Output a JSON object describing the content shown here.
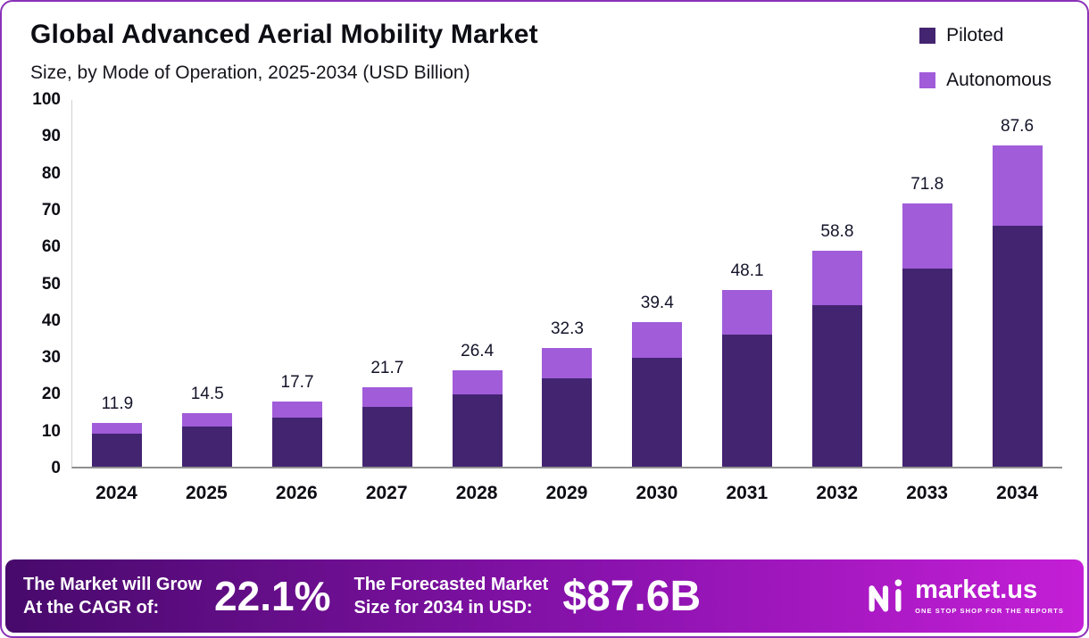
{
  "header": {
    "title": "Global Advanced Aerial Mobility Market",
    "subtitle": "Size, by Mode of Operation, 2025-2034 (USD Billion)"
  },
  "legend": [
    {
      "label": "Piloted",
      "color": "#432471"
    },
    {
      "label": "Autonomous",
      "color": "#a05cd9"
    }
  ],
  "chart_data": {
    "type": "bar",
    "stacked": true,
    "title": "Global Advanced Aerial Mobility Market Size, by Mode of Operation, 2025-2034 (USD Billion)",
    "categories": [
      "2024",
      "2025",
      "2026",
      "2027",
      "2028",
      "2029",
      "2030",
      "2031",
      "2032",
      "2033",
      "2034"
    ],
    "series": [
      {
        "name": "Piloted",
        "color": "#432471",
        "values": [
          8.9,
          10.9,
          13.3,
          16.3,
          19.8,
          24.2,
          29.6,
          36.1,
          44.1,
          53.9,
          65.7
        ]
      },
      {
        "name": "Autonomous",
        "color": "#a05cd9",
        "values": [
          3.0,
          3.6,
          4.4,
          5.4,
          6.6,
          8.1,
          9.8,
          12.0,
          14.7,
          17.9,
          21.9
        ]
      }
    ],
    "totals": [
      "11.9",
      "14.5",
      "17.7",
      "21.7",
      "26.4",
      "32.3",
      "39.4",
      "48.1",
      "58.8",
      "71.8",
      "87.6"
    ],
    "xlabel": "",
    "ylabel": "",
    "ylim": [
      0,
      100
    ],
    "yticks": [
      100,
      90,
      80,
      70,
      60,
      50,
      40,
      30,
      20,
      10,
      0
    ],
    "grid": false,
    "legend_position": "top-right"
  },
  "footer": {
    "cagr_label_line1": "The Market will Grow",
    "cagr_label_line2": "At the CAGR of:",
    "cagr_value": "22.1%",
    "forecast_label_line1": "The Forecasted Market",
    "forecast_label_line2": "Size for 2034 in USD:",
    "forecast_value": "$87.6B",
    "gradient": [
      "#470a6b",
      "#8912ad",
      "#c41fd6"
    ],
    "brand": {
      "name": "market.us",
      "tagline": "ONE STOP SHOP FOR THE REPORTS"
    }
  }
}
